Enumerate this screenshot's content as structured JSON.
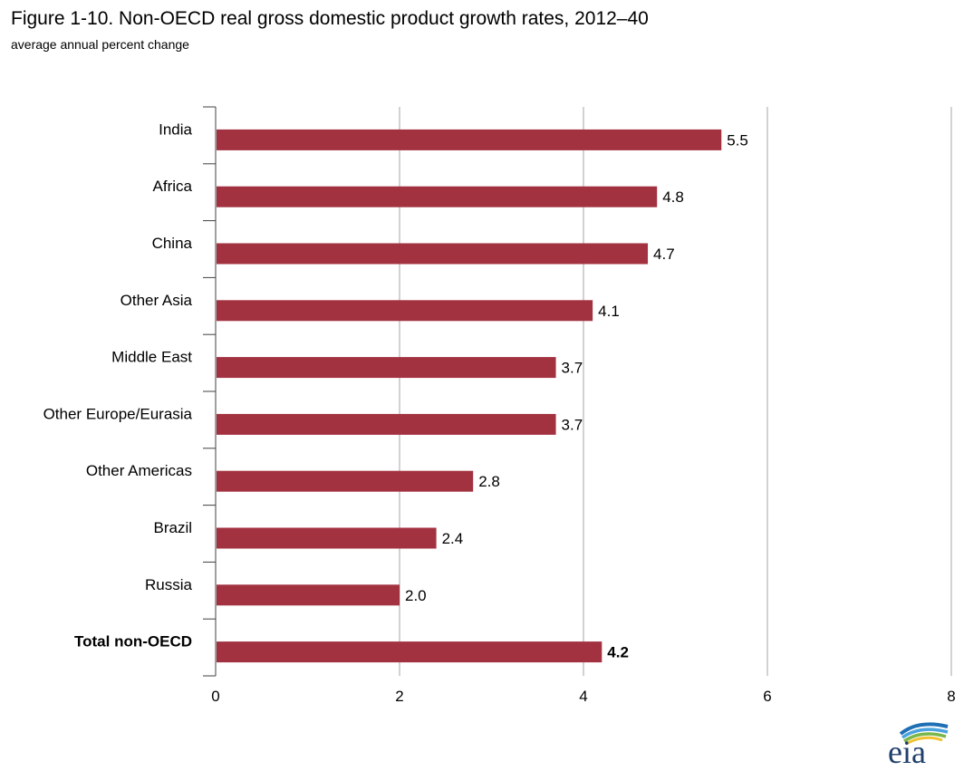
{
  "title": "Figure 1-10. Non-OECD real gross domestic product growth rates, 2012–40",
  "subtitle": "average annual percent change",
  "logo_text": "eia",
  "colors": {
    "bar": "#a33241",
    "grid": "#a6a6a6",
    "axis": "#404040"
  },
  "chart_data": {
    "type": "bar",
    "orientation": "horizontal",
    "title": "Figure 1-10. Non-OECD real gross domestic product growth rates, 2012–40",
    "subtitle": "average annual percent change",
    "categories": [
      "India",
      "Africa",
      "China",
      "Other Asia",
      "Middle East",
      "Other Europe/Eurasia",
      "Other Americas",
      "Brazil",
      "Russia",
      "Total non-OECD"
    ],
    "values": [
      5.5,
      4.8,
      4.7,
      4.1,
      3.7,
      3.7,
      2.8,
      2.4,
      2.0,
      4.2
    ],
    "value_labels": [
      "5.5",
      "4.8",
      "4.7",
      "4.1",
      "3.7",
      "3.7",
      "2.8",
      "2.4",
      "2.0",
      "4.2"
    ],
    "bold_categories": [
      "Total non-OECD"
    ],
    "xlim": [
      0,
      8
    ],
    "xticks": [
      "0",
      "2",
      "4",
      "6",
      "8"
    ],
    "xtick_values": [
      0,
      2,
      4,
      6,
      8
    ],
    "grid": "vertical",
    "legend": "none",
    "xlabel": "",
    "ylabel": ""
  }
}
